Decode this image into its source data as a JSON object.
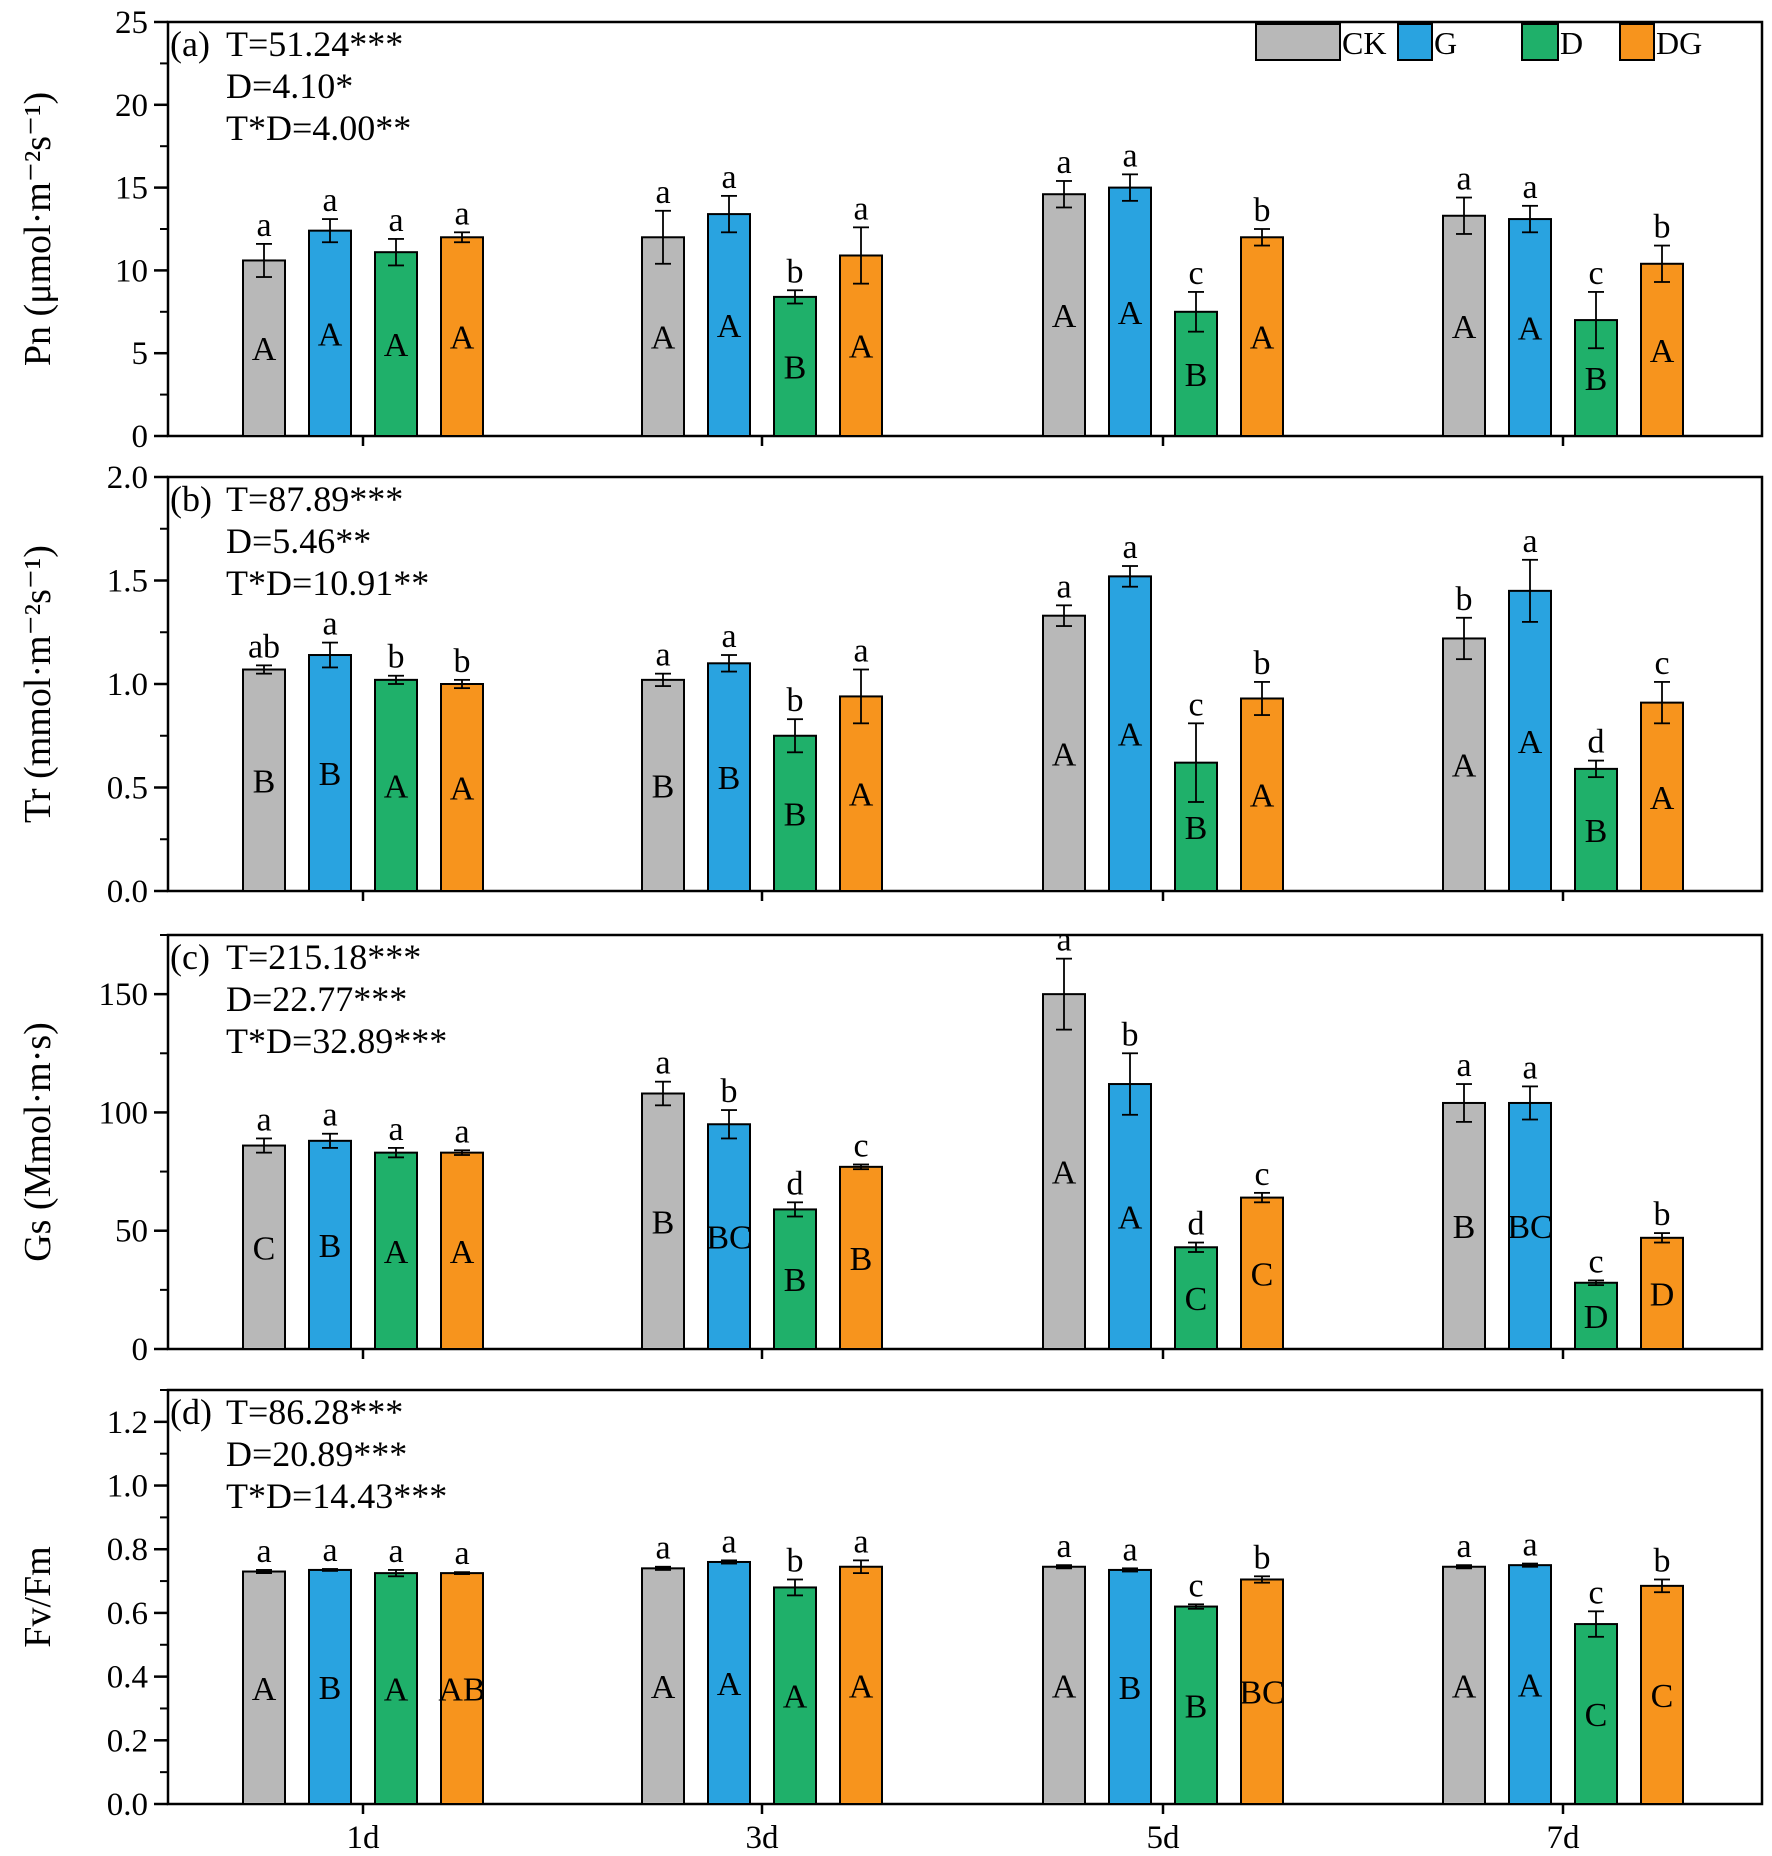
{
  "legend": [
    {
      "key": "CK",
      "label": "CK",
      "color": "#b8b8b8"
    },
    {
      "key": "G",
      "label": "G",
      "color": "#29a3e0"
    },
    {
      "key": "D",
      "label": "D",
      "color": "#1fb06a"
    },
    {
      "key": "DG",
      "label": "DG",
      "color": "#f7941d"
    }
  ],
  "chart_data": [
    {
      "type": "bar",
      "panel": "(a)",
      "ylabel": "Pn (μmol·m⁻²s⁻¹)",
      "ylim": [
        0,
        25
      ],
      "yticks": [
        "0",
        "5",
        "10",
        "15",
        "20",
        "25"
      ],
      "categories": [
        "1d",
        "3d",
        "5d",
        "7d"
      ],
      "stats": [
        "T=51.24***",
        "D=4.10*",
        "T*D=4.00**"
      ],
      "series": [
        {
          "name": "CK",
          "values": [
            10.6,
            12.0,
            14.6,
            13.3
          ],
          "errors": [
            1.0,
            1.6,
            0.8,
            1.1
          ],
          "lower": [
            "a",
            "a",
            "a",
            "a"
          ],
          "upper": [
            "A",
            "A",
            "A",
            "A"
          ]
        },
        {
          "name": "G",
          "values": [
            12.4,
            13.4,
            15.0,
            13.1
          ],
          "errors": [
            0.7,
            1.1,
            0.8,
            0.8
          ],
          "lower": [
            "a",
            "a",
            "a",
            "a"
          ],
          "upper": [
            "A",
            "A",
            "A",
            "A"
          ]
        },
        {
          "name": "D",
          "values": [
            11.1,
            8.4,
            7.5,
            7.0
          ],
          "errors": [
            0.8,
            0.4,
            1.2,
            1.7
          ],
          "lower": [
            "a",
            "b",
            "c",
            "c"
          ],
          "upper": [
            "A",
            "B",
            "B",
            "B"
          ]
        },
        {
          "name": "DG",
          "values": [
            12.0,
            10.9,
            12.0,
            10.4
          ],
          "errors": [
            0.3,
            1.7,
            0.5,
            1.1
          ],
          "lower": [
            "a",
            "a",
            "b",
            "b"
          ],
          "upper": [
            "A",
            "A",
            "A",
            "A"
          ]
        }
      ]
    },
    {
      "type": "bar",
      "panel": "(b)",
      "ylabel": "Tr (mmol·m⁻²s⁻¹)",
      "ylim": [
        0,
        2.0
      ],
      "yticks": [
        "0.0",
        "0.5",
        "1.0",
        "1.5",
        "2.0"
      ],
      "categories": [
        "1d",
        "3d",
        "5d",
        "7d"
      ],
      "stats": [
        "T=87.89***",
        "D=5.46**",
        "T*D=10.91**"
      ],
      "series": [
        {
          "name": "CK",
          "values": [
            1.07,
            1.02,
            1.33,
            1.22
          ],
          "errors": [
            0.02,
            0.03,
            0.05,
            0.1
          ],
          "lower": [
            "ab",
            "a",
            "a",
            "b"
          ],
          "upper": [
            "B",
            "B",
            "A",
            "A"
          ]
        },
        {
          "name": "G",
          "values": [
            1.14,
            1.1,
            1.52,
            1.45
          ],
          "errors": [
            0.06,
            0.04,
            0.05,
            0.15
          ],
          "lower": [
            "a",
            "a",
            "a",
            "a"
          ],
          "upper": [
            "B",
            "B",
            "A",
            "A"
          ]
        },
        {
          "name": "D",
          "values": [
            1.02,
            0.75,
            0.62,
            0.59
          ],
          "errors": [
            0.02,
            0.08,
            0.19,
            0.04
          ],
          "lower": [
            "b",
            "b",
            "c",
            "d"
          ],
          "upper": [
            "A",
            "B",
            "B",
            "B"
          ]
        },
        {
          "name": "DG",
          "values": [
            1.0,
            0.94,
            0.93,
            0.91
          ],
          "errors": [
            0.02,
            0.13,
            0.08,
            0.1
          ],
          "lower": [
            "b",
            "a",
            "b",
            "c"
          ],
          "upper": [
            "A",
            "A",
            "A",
            "A"
          ]
        }
      ]
    },
    {
      "type": "bar",
      "panel": "(c)",
      "ylabel": "Gs (Mmol·m·s)",
      "ylim": [
        0,
        175
      ],
      "yticks": [
        "0",
        "50",
        "100",
        "150"
      ],
      "categories": [
        "1d",
        "3d",
        "5d",
        "7d"
      ],
      "stats": [
        "T=215.18***",
        "D=22.77***",
        "T*D=32.89***"
      ],
      "series": [
        {
          "name": "CK",
          "values": [
            86,
            108,
            150,
            104
          ],
          "errors": [
            3,
            5,
            15,
            8
          ],
          "lower": [
            "a",
            "a",
            "a",
            "a"
          ],
          "upper": [
            "C",
            "B",
            "A",
            "B"
          ]
        },
        {
          "name": "G",
          "values": [
            88,
            95,
            112,
            104
          ],
          "errors": [
            3,
            6,
            13,
            7
          ],
          "lower": [
            "a",
            "b",
            "b",
            "a"
          ],
          "upper": [
            "B",
            "BC",
            "A",
            "BC"
          ]
        },
        {
          "name": "D",
          "values": [
            83,
            59,
            43,
            28
          ],
          "errors": [
            2,
            3,
            2,
            1
          ],
          "lower": [
            "a",
            "d",
            "d",
            "c"
          ],
          "upper": [
            "A",
            "B",
            "C",
            "D"
          ]
        },
        {
          "name": "DG",
          "values": [
            83,
            77,
            64,
            47
          ],
          "errors": [
            1,
            1,
            2,
            2
          ],
          "lower": [
            "a",
            "c",
            "c",
            "b"
          ],
          "upper": [
            "A",
            "B",
            "C",
            "D"
          ]
        }
      ]
    },
    {
      "type": "bar",
      "panel": "(d)",
      "ylabel": "Fv/Fm",
      "ylim": [
        0,
        1.3
      ],
      "yticks": [
        "0.0",
        "0.2",
        "0.4",
        "0.6",
        "0.8",
        "1.0",
        "1.2"
      ],
      "categories": [
        "1d",
        "3d",
        "5d",
        "7d"
      ],
      "stats": [
        "T=86.28***",
        "D=20.89***",
        "T*D=14.43***"
      ],
      "series": [
        {
          "name": "CK",
          "values": [
            0.73,
            0.74,
            0.745,
            0.745
          ],
          "errors": [
            0.005,
            0.005,
            0.005,
            0.005
          ],
          "lower": [
            "a",
            "a",
            "a",
            "a"
          ],
          "upper": [
            "A",
            "A",
            "A",
            "A"
          ]
        },
        {
          "name": "G",
          "values": [
            0.735,
            0.76,
            0.735,
            0.75
          ],
          "errors": [
            0.003,
            0.005,
            0.005,
            0.005
          ],
          "lower": [
            "a",
            "a",
            "a",
            "a"
          ],
          "upper": [
            "B",
            "A",
            "B",
            "A"
          ]
        },
        {
          "name": "D",
          "values": [
            0.725,
            0.68,
            0.62,
            0.565
          ],
          "errors": [
            0.01,
            0.025,
            0.007,
            0.04
          ],
          "lower": [
            "a",
            "b",
            "c",
            "c"
          ],
          "upper": [
            "A",
            "A",
            "B",
            "C"
          ]
        },
        {
          "name": "DG",
          "values": [
            0.725,
            0.745,
            0.705,
            0.685
          ],
          "errors": [
            0.003,
            0.02,
            0.01,
            0.02
          ],
          "lower": [
            "a",
            "a",
            "b",
            "b"
          ],
          "upper": [
            "AB",
            "A",
            "BC",
            "C"
          ]
        }
      ]
    }
  ]
}
